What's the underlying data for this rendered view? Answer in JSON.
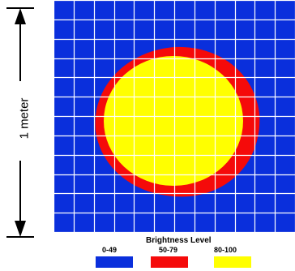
{
  "scale": {
    "label": "1 meter"
  },
  "map": {
    "background_color": "#0a2fdc",
    "ring_color": "#f50a0a",
    "core_color": "#ffff00",
    "grid_color": "#ffffff",
    "grid_divisions": 12
  },
  "legend": {
    "title": "Brightness Level",
    "items": [
      {
        "range": "0-49",
        "color": "#0a2fdc"
      },
      {
        "range": "50-79",
        "color": "#f50a0a"
      },
      {
        "range": "80-100",
        "color": "#ffff00"
      }
    ]
  }
}
